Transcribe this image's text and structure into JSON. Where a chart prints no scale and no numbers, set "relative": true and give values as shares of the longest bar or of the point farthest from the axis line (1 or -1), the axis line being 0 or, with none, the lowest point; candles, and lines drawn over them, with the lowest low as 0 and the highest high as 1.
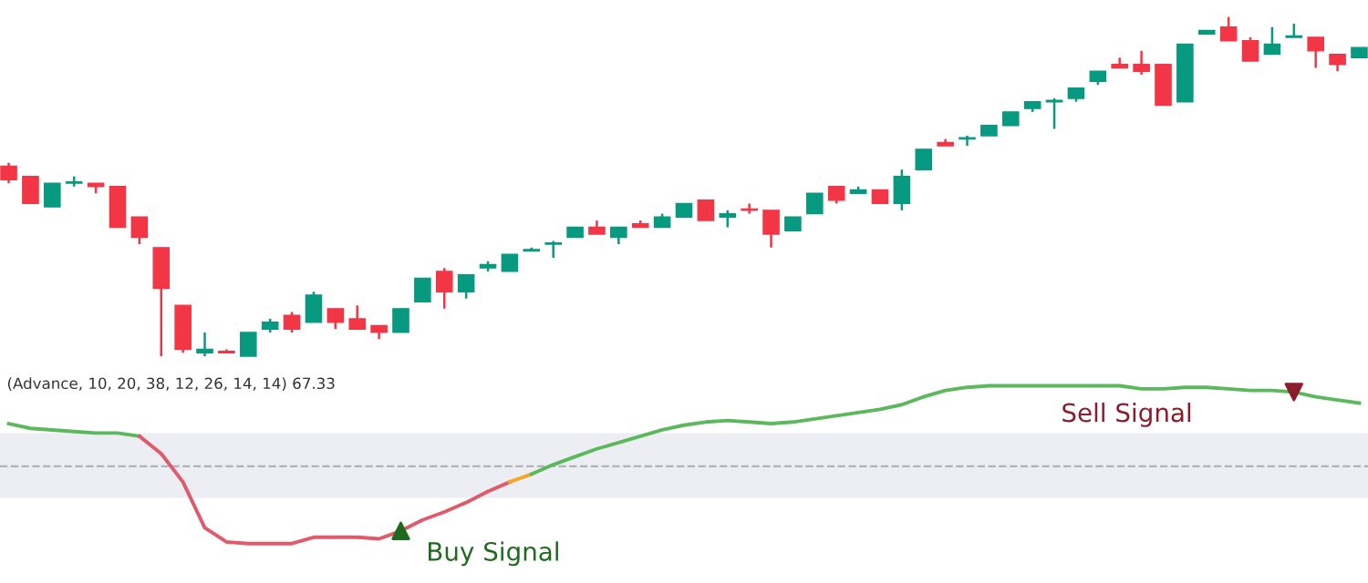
{
  "chart_data": [
    {
      "type": "candlestick",
      "relative": true,
      "categories": [
        null,
        null,
        null,
        null,
        null,
        null,
        null,
        null,
        null,
        null,
        null,
        null,
        null,
        null,
        null,
        null,
        null,
        null,
        null,
        null,
        null,
        null,
        null,
        null,
        null,
        null,
        null,
        null,
        null,
        null,
        null,
        null,
        null,
        null,
        null,
        null,
        null,
        null,
        null,
        null,
        null,
        null,
        null,
        null,
        null,
        null,
        null,
        null,
        null,
        null,
        null,
        null,
        null,
        null,
        null,
        null,
        null,
        null,
        null,
        null,
        null,
        null,
        null
      ],
      "ohlc": [
        [
          0.56,
          0.57,
          0.51,
          0.52
        ],
        [
          0.53,
          0.53,
          0.45,
          0.45
        ],
        [
          0.44,
          0.51,
          0.44,
          0.51
        ],
        [
          0.51,
          0.53,
          0.5,
          0.51
        ],
        [
          0.51,
          0.51,
          0.48,
          0.5
        ],
        [
          0.5,
          0.5,
          0.38,
          0.38
        ],
        [
          0.41,
          0.41,
          0.33,
          0.35
        ],
        [
          0.32,
          0.32,
          0,
          0.2
        ],
        [
          0.15,
          0.15,
          0.01,
          0.02
        ],
        [
          0.01,
          0.07,
          0,
          0.02
        ],
        [
          0.01,
          0.02,
          0.01,
          0.01
        ],
        [
          0,
          0.07,
          0,
          0.07
        ],
        [
          0.08,
          0.11,
          0.07,
          0.1
        ],
        [
          0.12,
          0.13,
          0.07,
          0.08
        ],
        [
          0.1,
          0.19,
          0.1,
          0.18
        ],
        [
          0.14,
          0.14,
          0.08,
          0.1
        ],
        [
          0.11,
          0.15,
          0.08,
          0.08
        ],
        [
          0.09,
          0.09,
          0.05,
          0.07
        ],
        [
          0.07,
          0.14,
          0.07,
          0.14
        ],
        [
          0.16,
          0.23,
          0.16,
          0.23
        ],
        [
          0.25,
          0.26,
          0.14,
          0.19
        ],
        [
          0.19,
          0.24,
          0.17,
          0.24
        ],
        [
          0.26,
          0.28,
          0.25,
          0.27
        ],
        [
          0.25,
          0.3,
          0.25,
          0.3
        ],
        [
          0.31,
          0.32,
          0.31,
          0.31
        ],
        [
          0.33,
          0.34,
          0.29,
          0.33
        ],
        [
          0.35,
          0.38,
          0.35,
          0.38
        ],
        [
          0.38,
          0.4,
          0.36,
          0.36
        ],
        [
          0.35,
          0.38,
          0.33,
          0.38
        ],
        [
          0.39,
          0.4,
          0.38,
          0.38
        ],
        [
          0.38,
          0.42,
          0.38,
          0.41
        ],
        [
          0.41,
          0.45,
          0.41,
          0.45
        ],
        [
          0.46,
          0.46,
          0.4,
          0.4
        ],
        [
          0.41,
          0.43,
          0.38,
          0.42
        ],
        [
          0.43,
          0.45,
          0.42,
          0.43
        ],
        [
          0.43,
          0.43,
          0.32,
          0.36
        ],
        [
          0.37,
          0.41,
          0.37,
          0.41
        ],
        [
          0.42,
          0.48,
          0.42,
          0.48
        ],
        [
          0.5,
          0.5,
          0.45,
          0.46
        ],
        [
          0.48,
          0.5,
          0.48,
          0.49
        ],
        [
          0.49,
          0.49,
          0.45,
          0.45
        ],
        [
          0.45,
          0.55,
          0.43,
          0.53
        ],
        [
          0.55,
          0.61,
          0.55,
          0.61
        ],
        [
          0.63,
          0.64,
          0.62,
          0.62
        ],
        [
          0.64,
          0.65,
          0.62,
          0.64
        ],
        [
          0.65,
          0.68,
          0.65,
          0.68
        ],
        [
          0.68,
          0.72,
          0.68,
          0.72
        ],
        [
          0.73,
          0.75,
          0.72,
          0.75
        ],
        [
          0.75,
          0.76,
          0.67,
          0.75
        ],
        [
          0.76,
          0.79,
          0.75,
          0.79
        ],
        [
          0.81,
          0.84,
          0.8,
          0.84
        ],
        [
          0.86,
          0.88,
          0.85,
          0.85
        ],
        [
          0.86,
          0.9,
          0.83,
          0.84
        ],
        [
          0.86,
          0.86,
          0.74,
          0.74
        ],
        [
          0.75,
          0.92,
          0.75,
          0.92
        ],
        [
          0.95,
          0.96,
          0.95,
          0.96
        ],
        [
          0.97,
          1.0,
          0.93,
          0.93
        ],
        [
          0.93,
          0.94,
          0.87,
          0.87
        ],
        [
          0.89,
          0.97,
          0.89,
          0.92
        ],
        [
          0.94,
          0.98,
          0.94,
          0.94
        ],
        [
          0.94,
          0.94,
          0.85,
          0.9
        ],
        [
          0.89,
          0.89,
          0.84,
          0.86
        ],
        [
          0.88,
          0.91,
          0.88,
          0.91
        ]
      ],
      "colors": [
        "#f23645",
        "#f23645",
        "#089981",
        "#089981",
        "#f23645",
        "#f23645",
        "#f23645",
        "#f23645",
        "#f23645",
        "#089981",
        "#f23645",
        "#089981",
        "#089981",
        "#f23645",
        "#089981",
        "#f23645",
        "#f23645",
        "#f23645",
        "#089981",
        "#089981",
        "#f23645",
        "#089981",
        "#089981",
        "#089981",
        "#089981",
        "#089981",
        "#089981",
        "#f23645",
        "#089981",
        "#f23645",
        "#089981",
        "#089981",
        "#f23645",
        "#089981",
        "#f23645",
        "#f23645",
        "#089981",
        "#089981",
        "#f23645",
        "#089981",
        "#f23645",
        "#089981",
        "#089981",
        "#f23645",
        "#089981",
        "#089981",
        "#089981",
        "#089981",
        "#089981",
        "#089981",
        "#089981",
        "#f23645",
        "#f23645",
        "#f23645",
        "#089981",
        "#089981",
        "#f23645",
        "#f23645",
        "#089981",
        "#089981",
        "#f23645",
        "#f23645",
        "#089981"
      ]
    },
    {
      "type": "line",
      "relative": true,
      "line_style": "solid",
      "categories": [
        null,
        null,
        null,
        null,
        null,
        null,
        null,
        null,
        null,
        null,
        null,
        null,
        null,
        null,
        null,
        null,
        null,
        null,
        null,
        null,
        null,
        null,
        null,
        null,
        null,
        null,
        null,
        null,
        null,
        null,
        null,
        null,
        null,
        null,
        null,
        null,
        null,
        null,
        null,
        null,
        null,
        null,
        null,
        null,
        null,
        null,
        null,
        null,
        null,
        null,
        null,
        null,
        null,
        null,
        null,
        null,
        null,
        null,
        null,
        null,
        null,
        null,
        null
      ],
      "annotations": [
        "(Advance, 10, 20, 38, 12, 26, 14, 14) 67.33"
      ],
      "bands": [
        {
          "axis": "y",
          "from": 0.29,
          "to": 0.7,
          "color": "#eceef4"
        }
      ],
      "ref_lines": [
        {
          "axis": "y",
          "value": 0.49,
          "color": "#b0b3bb",
          "line_style": "dashed"
        }
      ],
      "series": [
        {
          "color": "#5cb85c",
          "values": [
            0.76,
            0.73,
            0.72,
            0.71,
            0.7,
            0.7,
            0.68,
            null,
            null,
            null,
            null,
            null,
            null,
            null,
            null,
            null,
            null,
            null,
            null,
            null,
            null,
            null,
            null,
            null,
            null,
            null,
            null,
            null,
            null,
            null,
            null,
            null,
            null,
            null,
            null,
            null,
            null,
            null,
            null,
            null,
            null,
            null,
            null,
            null,
            null,
            null,
            null,
            null,
            null,
            null,
            null,
            null,
            null,
            null,
            null,
            null,
            null,
            null,
            null,
            null,
            null,
            null,
            null
          ]
        },
        {
          "color": "#e05a6a",
          "values": [
            null,
            null,
            null,
            null,
            null,
            null,
            0.68,
            0.57,
            0.39,
            0.1,
            0.01,
            0,
            0,
            0,
            0.04,
            0.04,
            0.04,
            0.03,
            0.08,
            0.15,
            0.2,
            0.26,
            0.33,
            0.39,
            null,
            null,
            null,
            null,
            null,
            null,
            null,
            null,
            null,
            null,
            null,
            null,
            null,
            null,
            null,
            null,
            null,
            null,
            null,
            null,
            null,
            null,
            null,
            null,
            null,
            null,
            null,
            null,
            null,
            null,
            null,
            null,
            null,
            null,
            null,
            null,
            null,
            null,
            null
          ]
        },
        {
          "color": "#f5a623",
          "values": [
            null,
            null,
            null,
            null,
            null,
            null,
            null,
            null,
            null,
            null,
            null,
            null,
            null,
            null,
            null,
            null,
            null,
            null,
            null,
            null,
            null,
            null,
            null,
            0.39,
            0.44,
            null,
            null,
            null,
            null,
            null,
            null,
            null,
            null,
            null,
            null,
            null,
            null,
            null,
            null,
            null,
            null,
            null,
            null,
            null,
            null,
            null,
            null,
            null,
            null,
            null,
            null,
            null,
            null,
            null,
            null,
            null,
            null,
            null,
            null,
            null,
            null,
            null,
            null
          ]
        },
        {
          "color": "#5cb85c",
          "values": [
            null,
            null,
            null,
            null,
            null,
            null,
            null,
            null,
            null,
            null,
            null,
            null,
            null,
            null,
            null,
            null,
            null,
            null,
            null,
            null,
            null,
            null,
            null,
            null,
            0.44,
            0.5,
            0.55,
            0.6,
            0.64,
            0.68,
            0.72,
            0.75,
            0.77,
            0.78,
            0.77,
            0.76,
            0.77,
            0.79,
            0.81,
            0.83,
            0.85,
            0.88,
            0.93,
            0.97,
            0.99,
            1.0,
            1.0,
            1.0,
            1.0,
            1.0,
            1.0,
            1.0,
            0.98,
            0.98,
            0.99,
            0.99,
            0.98,
            0.97,
            0.97,
            0.96,
            0.93,
            0.91,
            0.89
          ]
        },
        {
          "type": "scatter",
          "name": "Buy Signal",
          "color": "#1e6b1e",
          "marker": "triangle",
          "values": [
            null,
            null,
            null,
            null,
            null,
            null,
            null,
            null,
            null,
            null,
            null,
            null,
            null,
            null,
            null,
            null,
            null,
            null,
            0.08,
            null,
            null,
            null,
            null,
            null,
            null,
            null,
            null,
            null,
            null,
            null,
            null,
            null,
            null,
            null,
            null,
            null,
            null,
            null,
            null,
            null,
            null,
            null,
            null,
            null,
            null,
            null,
            null,
            null,
            null,
            null,
            null,
            null,
            null,
            null,
            null,
            null,
            null,
            null,
            null,
            null,
            null,
            null,
            null
          ]
        },
        {
          "type": "scatter",
          "name": "Sell Signal",
          "color": "#8b1c2c",
          "marker": "triangle_down",
          "values": [
            null,
            null,
            null,
            null,
            null,
            null,
            null,
            null,
            null,
            null,
            null,
            null,
            null,
            null,
            null,
            null,
            null,
            null,
            null,
            null,
            null,
            null,
            null,
            null,
            null,
            null,
            null,
            null,
            null,
            null,
            null,
            null,
            null,
            null,
            null,
            null,
            null,
            null,
            null,
            null,
            null,
            null,
            null,
            null,
            null,
            null,
            null,
            null,
            null,
            null,
            null,
            null,
            null,
            null,
            null,
            null,
            null,
            null,
            null,
            0.96,
            null,
            null,
            null
          ]
        }
      ]
    }
  ]
}
